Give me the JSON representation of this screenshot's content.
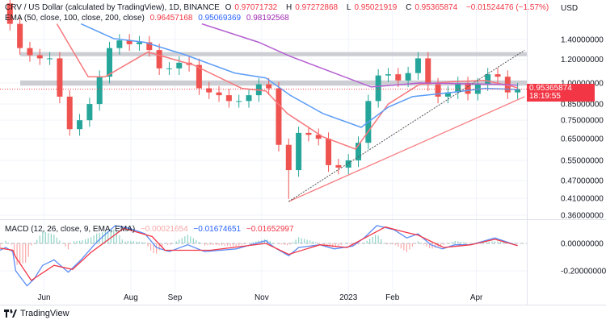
{
  "header": {
    "symbol": "CRV / US Dollar (calculated by TradingView), 1D, BINANCE",
    "o_label": "O",
    "o": "0.97071732",
    "h_label": "H",
    "h": "0.97272868",
    "l_label": "L",
    "l": "0.95021919",
    "c_label": "C",
    "c": "0.95365874",
    "change": "−0.01524476 (−1.57%)"
  },
  "ema_legend": {
    "label": "EMA (50, close, 100, close, 200, close)",
    "ema50": "0.96457168",
    "ema100": "0.95069369",
    "ema200": "0.98192568"
  },
  "macd_legend": {
    "label": "MACD (12, 26, close, 9, EMA, EMA)",
    "hist": "−0.00021654",
    "macd": "−0.01674651",
    "signal": "−0.01652997"
  },
  "price_axis": {
    "currency": "USD",
    "ticks": [
      "1.40000000",
      "1.20000000",
      "1.00000000",
      "0.85000000",
      "0.75000000",
      "0.65000000",
      "0.55000000",
      "0.47000000",
      "0.41000000",
      "0.36000000"
    ]
  },
  "macd_axis": {
    "ticks": [
      "0.00000000",
      "-0.20000000"
    ]
  },
  "current_price": {
    "value": "0.95365874",
    "countdown": "18:19:55"
  },
  "brand": "TradingView",
  "colors": {
    "up": "#26a69a",
    "down": "#ef5350",
    "ema50": "#f7787c",
    "ema100": "#5b9cf6",
    "ema200": "#b45fd1",
    "macd": "#5b8cf6",
    "signal": "#f23645",
    "zone": "#c4c6cc",
    "accent": "#f23645"
  },
  "chart_data": {
    "type": "candlestick",
    "scale": "log",
    "grid": true,
    "ylim": [
      0.36,
      1.9
    ],
    "x_ticks": [
      {
        "label": "Jun",
        "date": "2022-06-01"
      },
      {
        "label": "Aug",
        "date": "2022-08-01"
      },
      {
        "label": "Sep",
        "date": "2022-09-01"
      },
      {
        "label": "Nov",
        "date": "2022-11-01"
      },
      {
        "label": "2023",
        "date": "2023-01-01"
      },
      {
        "label": "Feb",
        "date": "2023-02-01"
      },
      {
        "label": "Apr",
        "date": "2023-04-01"
      }
    ],
    "candles": {
      "start_date": "2022-05-08",
      "interval_days": 7,
      "first_open": 1.85,
      "closes": [
        1.58,
        1.31,
        1.24,
        1.21,
        1.21,
        0.9,
        0.7,
        0.75,
        0.85,
        1.05,
        1.31,
        1.39,
        1.35,
        1.37,
        1.29,
        1.12,
        1.12,
        1.17,
        1.15,
        0.96,
        0.93,
        0.91,
        0.87,
        0.87,
        0.91,
        0.99,
        0.96,
        0.62,
        0.51,
        0.68,
        0.67,
        0.65,
        0.53,
        0.52,
        0.55,
        0.63,
        0.87,
        1.06,
        1.07,
        1.02,
        1.08,
        1.21,
        0.99,
        0.9,
        0.93,
        1.0,
        0.92,
        0.99,
        1.07,
        1.05,
        0.93,
        0.9537
      ]
    },
    "ema50": [
      [
        "2022-06-10",
        1.58
      ],
      [
        "2022-07-02",
        1.05
      ],
      [
        "2022-07-14",
        1.05
      ],
      [
        "2022-08-13",
        1.27
      ],
      [
        "2022-09-14",
        1.15
      ],
      [
        "2022-10-18",
        0.96
      ],
      [
        "2022-11-04",
        0.94
      ],
      [
        "2022-11-19",
        0.79
      ],
      [
        "2022-12-14",
        0.66
      ],
      [
        "2023-01-06",
        0.6
      ],
      [
        "2023-01-29",
        0.85
      ],
      [
        "2023-02-20",
        0.99
      ],
      [
        "2023-03-15",
        1.01
      ],
      [
        "2023-04-07",
        1.02
      ],
      [
        "2023-04-30",
        0.9646
      ]
    ],
    "ema100": [
      [
        "2022-06-27",
        1.58
      ],
      [
        "2022-07-20",
        1.41
      ],
      [
        "2022-08-11",
        1.37
      ],
      [
        "2022-09-09",
        1.24
      ],
      [
        "2022-10-13",
        1.08
      ],
      [
        "2022-11-04",
        1.04
      ],
      [
        "2022-11-21",
        0.91
      ],
      [
        "2022-12-14",
        0.79
      ],
      [
        "2023-01-10",
        0.71
      ],
      [
        "2023-01-29",
        0.83
      ],
      [
        "2023-02-15",
        0.9
      ],
      [
        "2023-03-15",
        0.93
      ],
      [
        "2023-04-07",
        0.96
      ],
      [
        "2023-04-30",
        0.9507
      ]
    ],
    "ema200": [
      [
        "2022-09-20",
        1.58
      ],
      [
        "2022-10-30",
        1.37
      ],
      [
        "2022-11-21",
        1.23
      ],
      [
        "2023-01-17",
        0.97
      ],
      [
        "2023-02-20",
        1.0
      ],
      [
        "2023-04-18",
        0.99
      ],
      [
        "2023-04-30",
        0.9819
      ]
    ],
    "zones": [
      [
        1.23,
        1.27
      ],
      [
        0.98,
        1.02
      ]
    ],
    "trendlines": [
      {
        "style": "solid",
        "color": "#f77c80",
        "from": [
          "2022-11-20",
          0.4
        ],
        "to": [
          "2023-05-05",
          0.9
        ]
      },
      {
        "style": "dotted",
        "color": "#555",
        "from": [
          "2022-11-20",
          0.4
        ],
        "to": [
          "2023-05-05",
          1.29
        ]
      }
    ],
    "macd": {
      "ylim": [
        -0.4,
        0.2
      ],
      "macd": [
        [
          "2022-05-01",
          -0.05
        ],
        [
          "2022-05-05",
          -0.03
        ],
        [
          "2022-05-10",
          -0.06
        ],
        [
          "2022-05-12",
          -0.2
        ],
        [
          "2022-05-20",
          -0.31
        ],
        [
          "2022-05-25",
          -0.26
        ],
        [
          "2022-05-31",
          -0.16
        ],
        [
          "2022-06-08",
          -0.12
        ],
        [
          "2022-06-18",
          -0.21
        ],
        [
          "2022-06-27",
          -0.12
        ],
        [
          "2022-07-08",
          0.01
        ],
        [
          "2022-07-21",
          0.13
        ],
        [
          "2022-07-31",
          0.11
        ],
        [
          "2022-08-11",
          0.07
        ],
        [
          "2022-08-19",
          -0.03
        ],
        [
          "2022-08-28",
          -0.06
        ],
        [
          "2022-09-10",
          -0.01
        ],
        [
          "2022-09-22",
          -0.06
        ],
        [
          "2022-10-14",
          -0.04
        ],
        [
          "2022-11-04",
          0.02
        ],
        [
          "2022-11-10",
          -0.03
        ],
        [
          "2022-11-20",
          -0.09
        ],
        [
          "2022-11-27",
          -0.03
        ],
        [
          "2022-12-12",
          -0.01
        ],
        [
          "2022-12-22",
          -0.04
        ],
        [
          "2023-01-04",
          -0.02
        ],
        [
          "2023-01-12",
          0.04
        ],
        [
          "2023-01-21",
          0.13
        ],
        [
          "2023-02-02",
          0.1
        ],
        [
          "2023-02-11",
          0.04
        ],
        [
          "2023-02-19",
          0.07
        ],
        [
          "2023-02-28",
          -0.01
        ],
        [
          "2023-03-08",
          -0.04
        ],
        [
          "2023-03-17",
          -0.01
        ],
        [
          "2023-03-28",
          -0.01
        ],
        [
          "2023-04-14",
          0.04
        ],
        [
          "2023-04-30",
          -0.0167
        ]
      ],
      "signal": [
        [
          "2022-05-01",
          -0.035
        ],
        [
          "2022-05-10",
          -0.05
        ],
        [
          "2022-05-12",
          -0.1
        ],
        [
          "2022-05-23",
          -0.27
        ],
        [
          "2022-06-08",
          -0.16
        ],
        [
          "2022-06-21",
          -0.19
        ],
        [
          "2022-07-04",
          -0.065
        ],
        [
          "2022-07-27",
          0.11
        ],
        [
          "2022-08-16",
          0.05
        ],
        [
          "2022-08-25",
          -0.05
        ],
        [
          "2022-09-26",
          -0.05
        ],
        [
          "2022-11-04",
          0.0
        ],
        [
          "2022-11-20",
          -0.08
        ],
        [
          "2022-12-12",
          -0.01
        ],
        [
          "2022-12-31",
          -0.03
        ],
        [
          "2023-01-27",
          0.12
        ],
        [
          "2023-02-07",
          0.09
        ],
        [
          "2023-02-19",
          0.06
        ],
        [
          "2023-03-09",
          -0.03
        ],
        [
          "2023-03-28",
          -0.01
        ],
        [
          "2023-04-14",
          0.03
        ],
        [
          "2023-04-30",
          -0.0165
        ]
      ]
    }
  }
}
